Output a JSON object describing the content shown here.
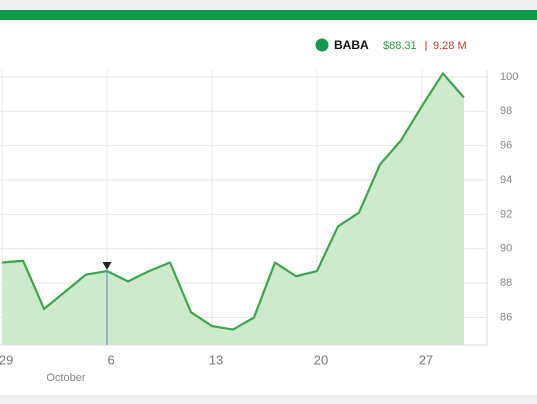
{
  "chart_data": {
    "type": "line",
    "series": [
      {
        "name": "BABA",
        "color": "#3aa84a",
        "fill": "#cfe9cd",
        "values": [
          89.2,
          89.3,
          86.5,
          87.5,
          88.5,
          88.7,
          88.1,
          88.7,
          89.2,
          86.3,
          85.5,
          85.3,
          86.0,
          89.2,
          88.4,
          88.7,
          91.3,
          92.1,
          94.9,
          96.3,
          98.3,
          100.2,
          98.8
        ]
      }
    ],
    "x": [
      0,
      1,
      2,
      3,
      4,
      5,
      6,
      7,
      8,
      9,
      10,
      11,
      12,
      13,
      14,
      15,
      16,
      17,
      18,
      19,
      20,
      21,
      22
    ],
    "xlim": [
      -0.1,
      23.1
    ],
    "xticks": [
      {
        "value": 0,
        "label": "29"
      },
      {
        "value": 5,
        "label": "6"
      },
      {
        "value": 10,
        "label": "13"
      },
      {
        "value": 15,
        "label": "20"
      },
      {
        "value": 20,
        "label": "27"
      }
    ],
    "month_label": "October",
    "ylim": [
      84.4,
      100.4
    ],
    "yticks": [
      86,
      88,
      90,
      92,
      94,
      96,
      98,
      100
    ],
    "grid": true,
    "price_label": "$88.31",
    "volume_label": "9.28 M"
  }
}
